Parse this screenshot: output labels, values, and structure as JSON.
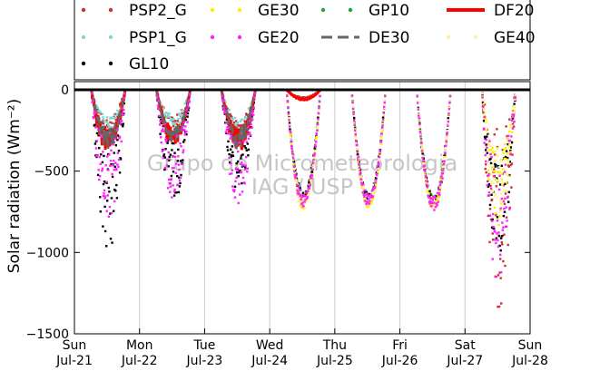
{
  "chart_data": {
    "type": "scatter",
    "ylabel": "Solar radiation (Wm⁻²)",
    "ylim": [
      -1500,
      50
    ],
    "yticks": [
      0,
      -500,
      -1000,
      -1500
    ],
    "xlim": [
      0,
      7
    ],
    "xticks": [
      {
        "day": "Sun",
        "date": "Jul-21"
      },
      {
        "day": "Mon",
        "date": "Jul-22"
      },
      {
        "day": "Tue",
        "date": "Jul-23"
      },
      {
        "day": "Wed",
        "date": "Jul-24"
      },
      {
        "day": "Thu",
        "date": "Jul-25"
      },
      {
        "day": "Fri",
        "date": "Jul-26"
      },
      {
        "day": "Sat",
        "date": "Jul-27"
      },
      {
        "day": "Sun",
        "date": "Jul-28"
      }
    ],
    "grid": "vertical",
    "legend_position": "top",
    "watermark": [
      "Grupo de Micrometeorologia",
      "IAG / USP"
    ],
    "series": [
      {
        "name": "PSP2_G",
        "color": "#c83232",
        "marker": "dot",
        "draw_order": 0,
        "days": [
          {
            "day": 0,
            "peak": -250,
            "noise": 0.35
          },
          {
            "day": 1,
            "peak": -230,
            "noise": 0.3
          },
          {
            "day": 2,
            "peak": -260,
            "noise": 0.3
          },
          {
            "day": 3,
            "peak": -50,
            "noise": 0.1
          },
          {
            "day": 6,
            "peak": -800,
            "noise": 0.7
          }
        ]
      },
      {
        "name": "GE30",
        "color": "#ffee00",
        "marker": "dot",
        "draw_order": 2,
        "days": [
          {
            "day": 3,
            "peak": -700,
            "noise": 0.05
          },
          {
            "day": 4,
            "peak": -700,
            "noise": 0.05
          },
          {
            "day": 5,
            "peak": -710,
            "noise": 0.05
          },
          {
            "day": 6,
            "peak": -600,
            "noise": 0.4
          }
        ]
      },
      {
        "name": "GP10",
        "color": "#2ca02c",
        "marker": "dot",
        "draw_order": 1,
        "days": [
          {
            "day": 3,
            "peak": -660,
            "noise": 0.05
          },
          {
            "day": 4,
            "peak": -670,
            "noise": 0.05
          },
          {
            "day": 5,
            "peak": -690,
            "noise": 0.05
          }
        ]
      },
      {
        "name": "DF20",
        "color": "#ff0000",
        "marker": "line",
        "draw_order": 3,
        "days": [
          {
            "day": 0,
            "peak": -320,
            "noise": 0.25
          },
          {
            "day": 1,
            "peak": -290,
            "noise": 0.2
          },
          {
            "day": 2,
            "peak": -310,
            "noise": 0.25
          },
          {
            "day": 3,
            "peak": -60,
            "noise": 0.05
          }
        ]
      },
      {
        "name": "PSP1_G",
        "color": "#7fd8cf",
        "marker": "dot",
        "draw_order": 0,
        "days": [
          {
            "day": 0,
            "peak": -240,
            "noise": 0.3
          },
          {
            "day": 1,
            "peak": -220,
            "noise": 0.3
          },
          {
            "day": 2,
            "peak": -250,
            "noise": 0.3
          }
        ]
      },
      {
        "name": "GE20",
        "color": "#ff22ff",
        "marker": "dot",
        "draw_order": 4,
        "days": [
          {
            "day": 0,
            "peak": -550,
            "noise": 0.45
          },
          {
            "day": 1,
            "peak": -480,
            "noise": 0.4
          },
          {
            "day": 2,
            "peak": -520,
            "noise": 0.4
          },
          {
            "day": 3,
            "peak": -680,
            "noise": 0.06
          },
          {
            "day": 4,
            "peak": -680,
            "noise": 0.06
          },
          {
            "day": 5,
            "peak": -700,
            "noise": 0.06
          },
          {
            "day": 6,
            "peak": -820,
            "noise": 0.5
          }
        ]
      },
      {
        "name": "DE30",
        "color": "#666666",
        "marker": "dash",
        "draw_order": 3,
        "days": [
          {
            "day": 0,
            "peak": -300,
            "noise": 0.25
          },
          {
            "day": 1,
            "peak": -280,
            "noise": 0.2
          },
          {
            "day": 2,
            "peak": -300,
            "noise": 0.25
          }
        ]
      },
      {
        "name": "GE40",
        "color": "#fff0a0",
        "marker": "dot",
        "draw_order": 2,
        "days": [
          {
            "day": 3,
            "peak": -690,
            "noise": 0.05
          },
          {
            "day": 4,
            "peak": -690,
            "noise": 0.05
          },
          {
            "day": 5,
            "peak": -700,
            "noise": 0.05
          },
          {
            "day": 6,
            "peak": -550,
            "noise": 0.3
          }
        ]
      },
      {
        "name": "GL10",
        "color": "#000000",
        "marker": "dot",
        "draw_order": 1,
        "days": [
          {
            "day": 0,
            "peak": -650,
            "noise": 0.55
          },
          {
            "day": 1,
            "peak": -500,
            "noise": 0.4
          },
          {
            "day": 2,
            "peak": -450,
            "noise": 0.4
          },
          {
            "day": 3,
            "peak": -660,
            "noise": 0.05
          },
          {
            "day": 4,
            "peak": -670,
            "noise": 0.05
          },
          {
            "day": 5,
            "peak": -690,
            "noise": 0.05
          },
          {
            "day": 6,
            "peak": -760,
            "noise": 0.4
          }
        ]
      }
    ]
  }
}
